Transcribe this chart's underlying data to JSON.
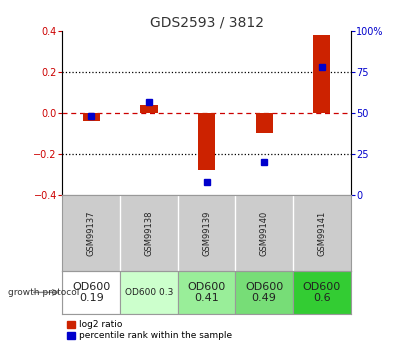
{
  "title": "GDS2593 / 3812",
  "samples": [
    "GSM99137",
    "GSM99138",
    "GSM99139",
    "GSM99140",
    "GSM99141"
  ],
  "log2_ratio": [
    -0.04,
    0.04,
    -0.28,
    -0.1,
    0.38
  ],
  "percentile_rank": [
    48,
    57,
    8,
    20,
    78
  ],
  "ylim_left": [
    -0.4,
    0.4
  ],
  "ylim_right": [
    0,
    100
  ],
  "yticks_left": [
    -0.4,
    -0.2,
    0.0,
    0.2,
    0.4
  ],
  "yticks_right": [
    0,
    25,
    50,
    75,
    100
  ],
  "bar_color": "#cc2200",
  "dot_color": "#0000cc",
  "protocol_labels": [
    "OD600\n0.19",
    "OD600 0.3",
    "OD600\n0.41",
    "OD600\n0.49",
    "OD600\n0.6"
  ],
  "protocol_colors": [
    "#ffffff",
    "#ccffcc",
    "#99ee99",
    "#77dd77",
    "#33cc33"
  ],
  "protocol_text_sizes": [
    8,
    6.5,
    8,
    8,
    8
  ],
  "zero_line_color": "#cc0000",
  "dotted_line_color": "#000000",
  "label_bg": "#cccccc",
  "title_color": "#333333",
  "left_tick_color": "#cc0000",
  "right_tick_color": "#0000cc"
}
